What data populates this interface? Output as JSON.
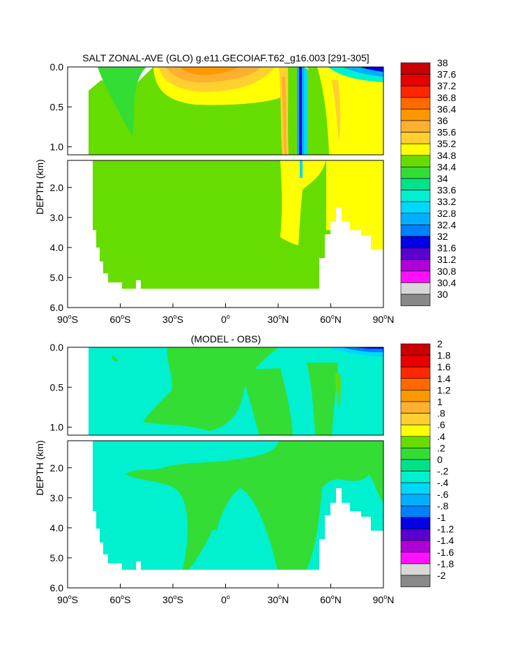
{
  "chart_data": [
    {
      "type": "heatmap",
      "title": "SALT ZONAL-AVE (GLO) g.e11.GECOIAF.T62_g16.003 [291-305]",
      "ylabel": "DEPTH (km)",
      "xlim": [
        -90,
        90
      ],
      "ylim": [
        6.0,
        0.0
      ],
      "upper_ticks": [
        "0.0",
        "0.5",
        "1.0"
      ],
      "lower_ticks": [
        "2.0",
        "3.0",
        "4.0",
        "5.0",
        "6.0"
      ],
      "x_ticks": [
        {
          "deg": "90",
          "hemi": "S"
        },
        {
          "deg": "60",
          "hemi": "S"
        },
        {
          "deg": "30",
          "hemi": "S"
        },
        {
          "deg": "0",
          "hemi": ""
        },
        {
          "deg": "30",
          "hemi": "N"
        },
        {
          "deg": "60",
          "hemi": "N"
        },
        {
          "deg": "90",
          "hemi": "N"
        }
      ],
      "colorbar": {
        "labels": [
          "38",
          "37.6",
          "37.2",
          "36.8",
          "36.4",
          "36",
          "35.6",
          "35.2",
          "34.8",
          "34.4",
          "34",
          "33.6",
          "33.2",
          "32.8",
          "32.4",
          "32",
          "31.6",
          "31.2",
          "30.8",
          "30.4",
          "30"
        ],
        "colors": [
          "#c80000",
          "#e60000",
          "#ff2600",
          "#ff6a00",
          "#ff9800",
          "#ffb030",
          "#ffd030",
          "#ffff00",
          "#66dd00",
          "#33dd33",
          "#00e28a",
          "#00f0d0",
          "#00d8ff",
          "#00b0ff",
          "#0080ff",
          "#0000e6",
          "#5a00d0",
          "#b000d8",
          "#ff10ff",
          "#d8d8d8",
          "#888888"
        ]
      },
      "fields": {
        "background": "#66dd00",
        "surface": "#ffff00",
        "missing": "#ffffff"
      }
    },
    {
      "type": "heatmap",
      "title": "(MODEL - OBS)",
      "ylabel": "DEPTH (km)",
      "xlim": [
        -90,
        90
      ],
      "ylim": [
        6.0,
        0.0
      ],
      "upper_ticks": [
        "0.0",
        "0.5",
        "1.0"
      ],
      "lower_ticks": [
        "2.0",
        "3.0",
        "4.0",
        "5.0",
        "6.0"
      ],
      "x_ticks": [
        {
          "deg": "90",
          "hemi": "S"
        },
        {
          "deg": "60",
          "hemi": "S"
        },
        {
          "deg": "30",
          "hemi": "S"
        },
        {
          "deg": "0",
          "hemi": ""
        },
        {
          "deg": "30",
          "hemi": "N"
        },
        {
          "deg": "60",
          "hemi": "N"
        },
        {
          "deg": "90",
          "hemi": "N"
        }
      ],
      "colorbar": {
        "labels": [
          "2",
          "1.8",
          "1.6",
          "1.4",
          "1.2",
          "1",
          ".8",
          ".6",
          ".4",
          ".2",
          "0",
          "-.2",
          "-.4",
          "-.6",
          "-.8",
          "-1",
          "-1.2",
          "-1.4",
          "-1.6",
          "-1.8",
          "-2"
        ],
        "colors": [
          "#c80000",
          "#e60000",
          "#ff2600",
          "#ff6a00",
          "#ff9800",
          "#ffb030",
          "#ffd030",
          "#ffff00",
          "#66dd00",
          "#33dd33",
          "#00e28a",
          "#00f0d0",
          "#00d8ff",
          "#00b0ff",
          "#0080ff",
          "#0000e6",
          "#5a00d0",
          "#b000d8",
          "#ff10ff",
          "#d8d8d8",
          "#888888"
        ]
      },
      "fields": {
        "background": "#00f0d0",
        "positive": "#33dd33",
        "missing": "#ffffff"
      }
    }
  ]
}
